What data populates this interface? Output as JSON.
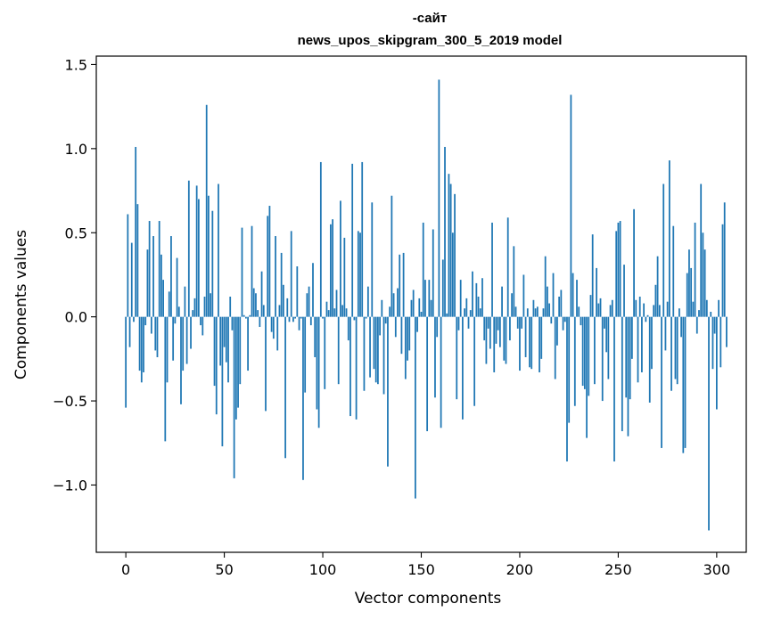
{
  "chart_data": {
    "type": "bar",
    "title_line1": "-сайт",
    "title_line2": "news_upos_skipgram_300_5_2019 model",
    "xlabel": "Vector components",
    "ylabel": "Components values",
    "xlim": [
      -15,
      315
    ],
    "ylim": [
      -1.4,
      1.55
    ],
    "xticks": [
      0,
      50,
      100,
      150,
      200,
      250,
      300
    ],
    "xtick_labels": [
      "0",
      "50",
      "100",
      "150",
      "200",
      "250",
      "300"
    ],
    "yticks": [
      -1.0,
      -0.5,
      0.0,
      0.5,
      1.0,
      1.5
    ],
    "ytick_labels": [
      "−1.0",
      "−0.5",
      "0.0",
      "0.5",
      "1.0",
      "1.5"
    ],
    "grid": false,
    "bar_color": "#1f77b4",
    "values": [
      -0.54,
      0.61,
      -0.18,
      0.44,
      -0.03,
      1.01,
      0.67,
      -0.32,
      -0.39,
      -0.33,
      -0.05,
      0.4,
      0.57,
      -0.1,
      0.48,
      -0.2,
      -0.24,
      0.57,
      0.37,
      0.22,
      -0.74,
      -0.39,
      0.15,
      0.48,
      -0.26,
      -0.04,
      0.35,
      0.06,
      -0.52,
      -0.32,
      0.18,
      -0.28,
      0.81,
      -0.19,
      0.04,
      0.11,
      0.78,
      0.7,
      -0.05,
      -0.11,
      0.12,
      1.26,
      0.72,
      0.14,
      0.63,
      -0.41,
      -0.58,
      0.79,
      -0.29,
      -0.77,
      -0.18,
      -0.27,
      -0.39,
      0.12,
      -0.08,
      -0.96,
      -0.61,
      -0.54,
      -0.4,
      0.53,
      0.01,
      -0.01,
      -0.32,
      0.01,
      0.54,
      0.17,
      0.14,
      0.04,
      -0.06,
      0.27,
      0.07,
      -0.56,
      0.6,
      0.66,
      -0.09,
      -0.13,
      0.48,
      -0.2,
      0.07,
      0.38,
      0.19,
      -0.84,
      0.11,
      -0.03,
      0.51,
      -0.03,
      -0.01,
      0.3,
      -0.08,
      -0.01,
      -0.97,
      -0.45,
      0.14,
      0.18,
      -0.05,
      0.32,
      -0.24,
      -0.55,
      -0.66,
      0.92,
      -0.01,
      -0.43,
      0.09,
      0.04,
      0.55,
      0.58,
      0.05,
      0.16,
      -0.4,
      0.69,
      0.07,
      0.47,
      0.05,
      -0.14,
      -0.59,
      0.91,
      -0.02,
      -0.61,
      0.51,
      0.5,
      0.92,
      -0.44,
      -0.01,
      0.18,
      -0.36,
      0.68,
      -0.31,
      -0.39,
      -0.4,
      -0.11,
      0.1,
      -0.46,
      -0.04,
      -0.89,
      0.06,
      0.72,
      0.14,
      -0.12,
      0.17,
      0.37,
      -0.22,
      0.38,
      -0.37,
      -0.26,
      -0.2,
      0.1,
      0.16,
      -1.08,
      -0.09,
      0.11,
      0.03,
      0.56,
      0.22,
      -0.68,
      0.22,
      0.1,
      0.52,
      -0.48,
      -0.12,
      1.41,
      -0.66,
      0.34,
      1.01,
      0.02,
      0.85,
      0.79,
      0.5,
      0.73,
      -0.49,
      -0.08,
      0.22,
      -0.61,
      0.05,
      0.11,
      -0.07,
      0.04,
      0.27,
      -0.53,
      0.2,
      0.12,
      0.05,
      0.23,
      -0.14,
      -0.28,
      -0.07,
      -0.19,
      0.56,
      -0.33,
      -0.16,
      -0.08,
      -0.18,
      0.18,
      -0.26,
      -0.28,
      0.59,
      -0.14,
      0.14,
      0.42,
      0.06,
      -0.07,
      -0.32,
      -0.07,
      0.25,
      -0.24,
      0.05,
      -0.3,
      -0.31,
      0.1,
      0.05,
      0.06,
      -0.33,
      -0.25,
      0.05,
      0.36,
      0.18,
      0.08,
      -0.04,
      0.26,
      -0.37,
      -0.17,
      0.12,
      0.16,
      -0.08,
      -0.03,
      -0.86,
      -0.63,
      1.32,
      0.26,
      -0.53,
      0.22,
      0.06,
      -0.05,
      -0.41,
      -0.43,
      -0.72,
      -0.47,
      0.13,
      0.49,
      -0.4,
      0.29,
      0.08,
      0.11,
      -0.5,
      -0.07,
      -0.21,
      -0.37,
      0.07,
      0.1,
      -0.86,
      0.51,
      0.56,
      0.57,
      -0.68,
      0.31,
      -0.48,
      -0.71,
      -0.49,
      -0.25,
      0.64,
      0.1,
      -0.39,
      0.12,
      -0.33,
      0.08,
      -0.03,
      0.01,
      -0.51,
      -0.31,
      0.07,
      0.19,
      0.36,
      0.07,
      -0.78,
      0.79,
      -0.2,
      0.09,
      0.93,
      -0.44,
      0.54,
      -0.37,
      -0.4,
      0.05,
      -0.12,
      -0.81,
      -0.78,
      0.26,
      0.4,
      0.29,
      0.09,
      0.56,
      -0.1,
      0.04,
      0.79,
      0.5,
      0.4,
      0.1,
      -1.27,
      0.03,
      -0.31,
      -0.1,
      -0.55,
      0.1,
      -0.3,
      0.55,
      0.68,
      -0.18
    ]
  }
}
